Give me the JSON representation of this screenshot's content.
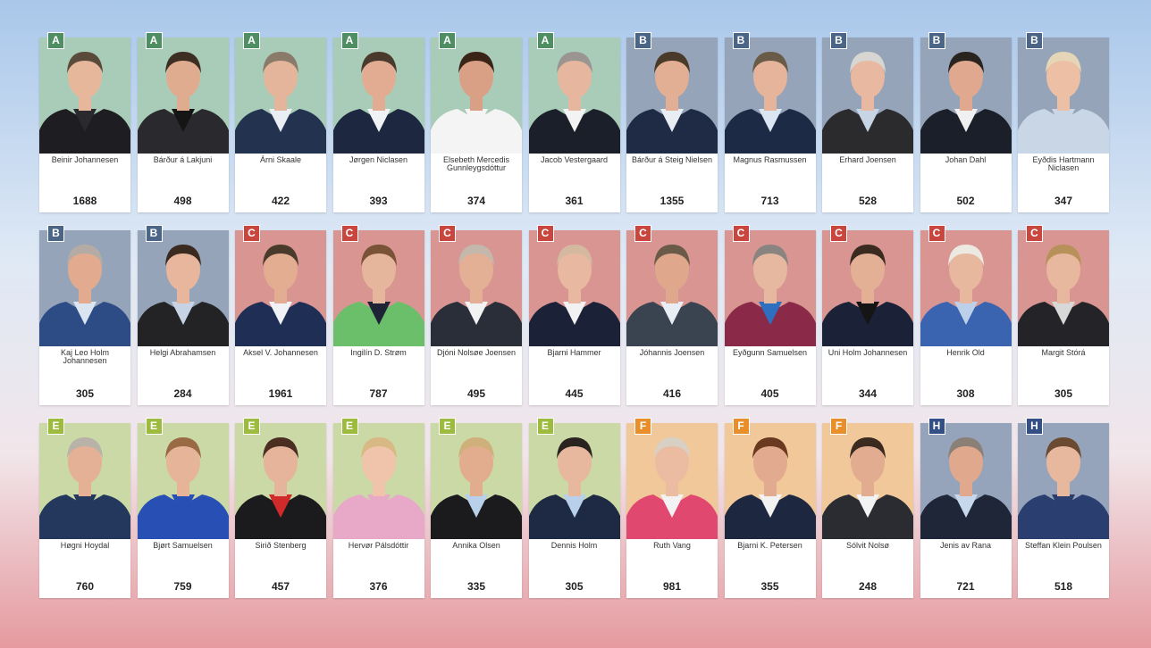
{
  "parties": {
    "A": {
      "color": "#4f8e63",
      "bg": "#a9ccb8"
    },
    "B": {
      "color": "#4a6585",
      "bg": "#95a4b8"
    },
    "C": {
      "color": "#c9463f",
      "bg": "#d99591"
    },
    "E": {
      "color": "#9cbb3f",
      "bg": "#cad9a5"
    },
    "F": {
      "color": "#e88f2c",
      "bg": "#f0c899"
    },
    "H": {
      "color": "#334f85",
      "bg": "#95a3bb"
    }
  },
  "candidates": [
    {
      "party": "A",
      "name": "Beinir Johannesen",
      "votes": "1688",
      "jacket": "#1e1e22",
      "shirt": "#2a2a2e",
      "skin": "#e7b79c",
      "hair": "#5a4a3a"
    },
    {
      "party": "A",
      "name": "Bárður á Lakjuni",
      "votes": "498",
      "jacket": "#2a2a2e",
      "shirt": "#151515",
      "skin": "#e0ac90",
      "hair": "#3d2e24"
    },
    {
      "party": "A",
      "name": "Árni Skaale",
      "votes": "422",
      "jacket": "#22324f",
      "shirt": "#e9eef5",
      "skin": "#e5b59b",
      "hair": "#8a7a6a"
    },
    {
      "party": "A",
      "name": "Jørgen Niclasen",
      "votes": "393",
      "jacket": "#1d2840",
      "shirt": "#f0f2f5",
      "skin": "#e2ac93",
      "hair": "#4a3a2e"
    },
    {
      "party": "A",
      "name": "Elsebeth Mercedis Gunnleygsdóttur",
      "votes": "374",
      "jacket": "#f4f4f4",
      "shirt": "#f4f4f4",
      "skin": "#d9a085",
      "hair": "#3a2418"
    },
    {
      "party": "A",
      "name": "Jacob Vestergaard",
      "votes": "361",
      "jacket": "#1b1f2a",
      "shirt": "#f3f3f3",
      "skin": "#e6b69e",
      "hair": "#9a9590"
    },
    {
      "party": "B",
      "name": "Bárður á Steig Nielsen",
      "votes": "1355",
      "jacket": "#1f2b44",
      "shirt": "#e8edf3",
      "skin": "#e2ae94",
      "hair": "#4a3a2a"
    },
    {
      "party": "B",
      "name": "Magnus Rasmussen",
      "votes": "713",
      "jacket": "#1d2a45",
      "shirt": "#dbe6f2",
      "skin": "#e6b49a",
      "hair": "#6a5a48"
    },
    {
      "party": "B",
      "name": "Erhard Joensen",
      "votes": "528",
      "jacket": "#2b2b2e",
      "shirt": "#c6d4e6",
      "skin": "#e8b9a0",
      "hair": "#d8d6d2"
    },
    {
      "party": "B",
      "name": "Johan Dahl",
      "votes": "502",
      "jacket": "#1b1f2a",
      "shirt": "#f0f0f0",
      "skin": "#e0a98f",
      "hair": "#2a2420"
    },
    {
      "party": "B",
      "name": "Eyðdis Hartmann Niclasen",
      "votes": "347",
      "jacket": "#c8d6e6",
      "shirt": "#c8d6e6",
      "skin": "#edc0a6",
      "hair": "#e4d6b6"
    },
    {
      "party": "B",
      "name": "Kaj Leo Holm Johannesen",
      "votes": "305",
      "jacket": "#2d4b85",
      "shirt": "#dbe5f2",
      "skin": "#e2aa8e",
      "hair": "#b4aca4"
    },
    {
      "party": "B",
      "name": "Helgi Abrahamsen",
      "votes": "284",
      "jacket": "#232325",
      "shirt": "#c7d3e4",
      "skin": "#e7b69c",
      "hair": "#3a2a20"
    },
    {
      "party": "C",
      "name": "Aksel V. Johannesen",
      "votes": "1961",
      "jacket": "#1f2e55",
      "shirt": "#f0f2f5",
      "skin": "#e3ad92",
      "hair": "#4a3a2c"
    },
    {
      "party": "C",
      "name": "Ingilín D. Strøm",
      "votes": "787",
      "jacket": "#6cbf6a",
      "shirt": "#1e2335",
      "skin": "#e6b69c",
      "hair": "#7a5236"
    },
    {
      "party": "C",
      "name": "Djóni Nolsøe Joensen",
      "votes": "495",
      "jacket": "#2a2e38",
      "shirt": "#f2f2f2",
      "skin": "#e4b095",
      "hair": "#c4b8ac"
    },
    {
      "party": "C",
      "name": "Bjarni Hammer",
      "votes": "445",
      "jacket": "#1b2238",
      "shirt": "#f2f2f2",
      "skin": "#e8b8a0",
      "hair": "#d4b8a0"
    },
    {
      "party": "C",
      "name": "Jóhannis Joensen",
      "votes": "416",
      "jacket": "#3a4450",
      "shirt": "#e8eef4",
      "skin": "#dfa78b",
      "hair": "#6a5a48"
    },
    {
      "party": "C",
      "name": "Eyðgunn Samuelsen",
      "votes": "405",
      "jacket": "#8a2a48",
      "shirt": "#2e6fc0",
      "skin": "#e6b8a0",
      "hair": "#8a8480"
    },
    {
      "party": "C",
      "name": "Uni Holm Johannesen",
      "votes": "344",
      "jacket": "#1b2238",
      "shirt": "#151515",
      "skin": "#e4b095",
      "hair": "#3a2a20"
    },
    {
      "party": "C",
      "name": "Henrik Old",
      "votes": "308",
      "jacket": "#3a64b0",
      "shirt": "#bcd0ea",
      "skin": "#e8b89e",
      "hair": "#ece8e2"
    },
    {
      "party": "C",
      "name": "Margit Stórá",
      "votes": "305",
      "jacket": "#242428",
      "shirt": "#d8d8d8",
      "skin": "#e8b89e",
      "hair": "#b8905a"
    },
    {
      "party": "E",
      "name": "Høgni Hoydal",
      "votes": "760",
      "jacket": "#24385e",
      "shirt": "#24385e",
      "skin": "#e4b096",
      "hair": "#b8b2a8"
    },
    {
      "party": "E",
      "name": "Bjørt Samuelsen",
      "votes": "759",
      "jacket": "#2850b4",
      "shirt": "#2850b4",
      "skin": "#e6b499",
      "hair": "#9a6a44"
    },
    {
      "party": "E",
      "name": "Sirið Stenberg",
      "votes": "457",
      "jacket": "#1b1b1e",
      "shirt": "#d02a2a",
      "skin": "#e5b49a",
      "hair": "#4a2e22"
    },
    {
      "party": "E",
      "name": "Hervør Pálsdóttir",
      "votes": "376",
      "jacket": "#e8a8c8",
      "shirt": "#e8a8c8",
      "skin": "#efc4aa",
      "hair": "#d8b884"
    },
    {
      "party": "E",
      "name": "Annika Olsen",
      "votes": "335",
      "jacket": "#1b1b1e",
      "shirt": "#b8d0ea",
      "skin": "#e2ac8e",
      "hair": "#d0b07a"
    },
    {
      "party": "E",
      "name": "Dennis Holm",
      "votes": "305",
      "jacket": "#1e2a44",
      "shirt": "#b8d0ea",
      "skin": "#e8b89e",
      "hair": "#2a2420"
    },
    {
      "party": "F",
      "name": "Ruth Vang",
      "votes": "981",
      "jacket": "#e04870",
      "shirt": "#f2f2f2",
      "skin": "#ecbca2",
      "hair": "#d8d0c4"
    },
    {
      "party": "F",
      "name": "Bjarni K. Petersen",
      "votes": "355",
      "jacket": "#1e2740",
      "shirt": "#f2f2f2",
      "skin": "#e2aa8e",
      "hair": "#6a3a20"
    },
    {
      "party": "F",
      "name": "Sólvit Nolsø",
      "votes": "248",
      "jacket": "#2a2c32",
      "shirt": "#f2f2f2",
      "skin": "#e2ac90",
      "hair": "#3a2a20"
    },
    {
      "party": "H",
      "name": "Jenis av Rana",
      "votes": "721",
      "jacket": "#1e2638",
      "shirt": "#c8d8ec",
      "skin": "#e0a88c",
      "hair": "#8a8076"
    },
    {
      "party": "H",
      "name": "Steffan Klein Poulsen",
      "votes": "518",
      "jacket": "#2a3e70",
      "shirt": "#2a3e70",
      "skin": "#e8b89e",
      "hair": "#6a4a30"
    }
  ]
}
